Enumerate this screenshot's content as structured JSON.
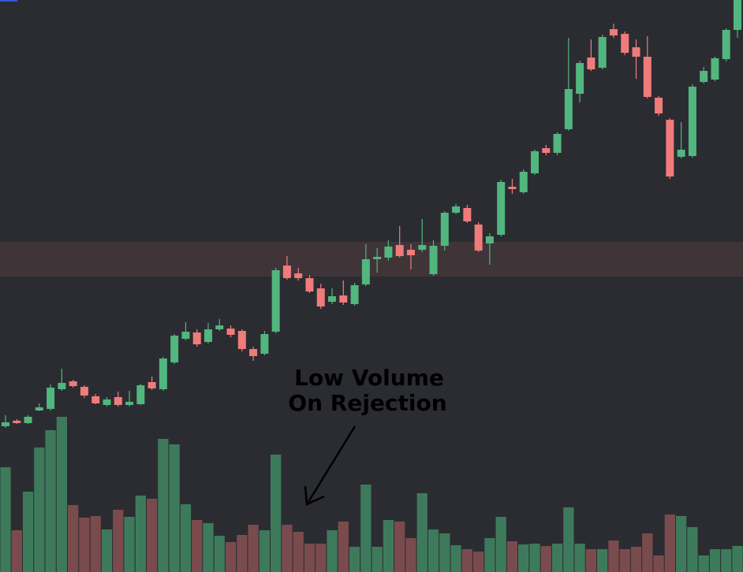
{
  "chart_data": {
    "type": "candlestick",
    "annotation": [
      "Low Volume",
      "On Rejection"
    ],
    "up_color": "#52b67f",
    "down_color": "#f07b7b",
    "volume_up_color": "#3d7a5c",
    "volume_down_color": "#7a4b4d",
    "zone": [
      375,
      419
    ],
    "zone_color": "#3f3539",
    "ylim": [
      0,
      726
    ],
    "y2lim": [
      0,
      726
    ],
    "open": [
      185,
      192,
      189,
      205,
      207,
      232,
      242,
      235,
      223,
      212,
      222,
      212,
      213,
      241,
      232,
      266,
      296,
      304,
      292,
      308,
      309,
      306,
      283,
      277,
      305,
      389,
      379,
      373,
      360,
      343,
      351,
      340,
      365,
      397,
      399,
      415,
      409,
      409,
      378,
      414,
      456,
      462,
      441,
      417,
      428,
      489,
      482,
      506,
      538,
      532,
      562,
      607,
      653,
      640,
      689,
      683,
      666,
      654,
      602,
      574,
      527,
      528,
      622,
      625,
      651,
      688
    ],
    "high": [
      199,
      194,
      199,
      214,
      238,
      258,
      244,
      237,
      226,
      222,
      229,
      230,
      239,
      248,
      273,
      302,
      317,
      308,
      316,
      321,
      313,
      308,
      286,
      306,
      386,
      401,
      386,
      377,
      366,
      360,
      370,
      367,
      416,
      411,
      421,
      439,
      416,
      448,
      421,
      458,
      467,
      466,
      444,
      430,
      498,
      499,
      511,
      536,
      542,
      558,
      678,
      649,
      676,
      682,
      696,
      686,
      676,
      680,
      604,
      576,
      571,
      619,
      641,
      654,
      690,
      730
    ],
    "low": [
      183,
      188,
      188,
      204,
      205,
      230,
      234,
      221,
      213,
      210,
      210,
      210,
      212,
      231,
      230,
      264,
      294,
      286,
      290,
      306,
      298,
      280,
      268,
      275,
      303,
      371,
      370,
      354,
      334,
      340,
      339,
      338,
      363,
      380,
      395,
      399,
      384,
      406,
      376,
      408,
      454,
      443,
      406,
      390,
      426,
      480,
      480,
      504,
      529,
      529,
      560,
      596,
      636,
      638,
      678,
      656,
      626,
      601,
      579,
      499,
      525,
      526,
      620,
      623,
      648,
      678
    ],
    "close": [
      190,
      189,
      197,
      209,
      234,
      240,
      236,
      224,
      214,
      219,
      212,
      216,
      237,
      233,
      271,
      300,
      305,
      289,
      308,
      313,
      301,
      283,
      274,
      302,
      383,
      373,
      373,
      356,
      337,
      350,
      342,
      364,
      397,
      400,
      413,
      401,
      402,
      415,
      414,
      456,
      464,
      445,
      408,
      426,
      495,
      486,
      508,
      534,
      532,
      556,
      613,
      646,
      638,
      679,
      681,
      659,
      654,
      603,
      582,
      502,
      536,
      616,
      636,
      652,
      688,
      726
    ],
    "volume": [
      133,
      53,
      102,
      158,
      180,
      197,
      85,
      69,
      71,
      54,
      79,
      70,
      97,
      93,
      169,
      162,
      86,
      66,
      62,
      46,
      38,
      47,
      60,
      53,
      149,
      60,
      51,
      36,
      36,
      53,
      64,
      32,
      111,
      32,
      66,
      64,
      43,
      100,
      54,
      49,
      34,
      29,
      26,
      43,
      70,
      39,
      35,
      36,
      33,
      36,
      82,
      36,
      29,
      29,
      40,
      29,
      32,
      49,
      21,
      73,
      71,
      57,
      21,
      29,
      29,
      33
    ]
  }
}
